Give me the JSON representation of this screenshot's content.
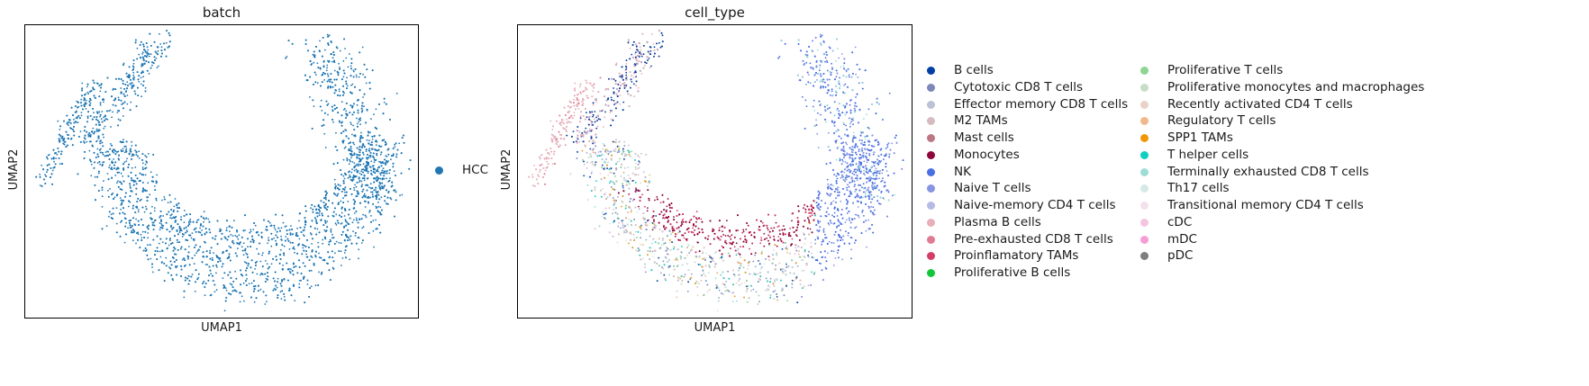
{
  "chart_data": [
    {
      "type": "scatter",
      "title": "batch",
      "xlabel": "UMAP1",
      "ylabel": "UMAP2",
      "grid": false,
      "legend_placement": "right",
      "legend": [
        {
          "name": "HCC",
          "color": "#1f77b4"
        }
      ]
    },
    {
      "type": "scatter",
      "title": "cell_type",
      "xlabel": "UMAP1",
      "ylabel": "UMAP2",
      "grid": false,
      "legend_placement": "right, two columns",
      "legend": [
        {
          "name": "B cells",
          "color": "#023fa5"
        },
        {
          "name": "Cytotoxic CD8 T cells",
          "color": "#7d87b9"
        },
        {
          "name": "Effector memory CD8 T cells",
          "color": "#bec1d4"
        },
        {
          "name": "M2 TAMs",
          "color": "#d6bcc0"
        },
        {
          "name": "Mast cells",
          "color": "#bb7784"
        },
        {
          "name": "Monocytes",
          "color": "#8e063b"
        },
        {
          "name": "NK",
          "color": "#4a6fe3"
        },
        {
          "name": "Naive T cells",
          "color": "#8595e1"
        },
        {
          "name": "Naive-memory CD4 T cells",
          "color": "#b5bbe3"
        },
        {
          "name": "Plasma B cells",
          "color": "#e6afb9"
        },
        {
          "name": "Pre-exhausted CD8 T cells",
          "color": "#e07b91"
        },
        {
          "name": "Proinflamatory TAMs",
          "color": "#d33f6a"
        },
        {
          "name": "Proliferative B cells",
          "color": "#11c638"
        },
        {
          "name": "Proliferative T cells",
          "color": "#8dd593"
        },
        {
          "name": "Proliferative monocytes and macrophages",
          "color": "#c6dec7"
        },
        {
          "name": "Recently activated CD4 T cells",
          "color": "#ead3c6"
        },
        {
          "name": "Regulatory T cells",
          "color": "#f0b98d"
        },
        {
          "name": "SPP1 TAMs",
          "color": "#ef9708"
        },
        {
          "name": "T helper cells",
          "color": "#0fcfc0"
        },
        {
          "name": "Terminally exhausted CD8 T cells",
          "color": "#9cded6"
        },
        {
          "name": "Th17 cells",
          "color": "#d5eae7"
        },
        {
          "name": "Transitional memory CD4 T cells",
          "color": "#f3e1eb"
        },
        {
          "name": "cDC",
          "color": "#f6c4e1"
        },
        {
          "name": "mDC",
          "color": "#f79cd4"
        },
        {
          "name": "pDC",
          "color": "#7f7f7f"
        }
      ]
    }
  ]
}
